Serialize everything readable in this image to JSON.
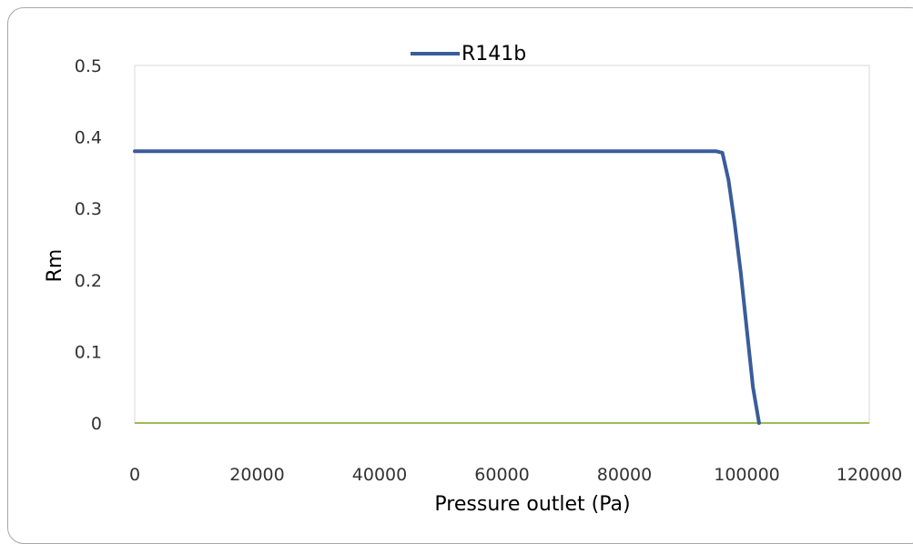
{
  "chart_data": {
    "type": "line",
    "xlabel": "Pressure outlet (Pa)",
    "ylabel": "Rm",
    "xlim": [
      0,
      120000
    ],
    "ylim": [
      0,
      0.5
    ],
    "x_ticks": [
      "0",
      "20000",
      "40000",
      "60000",
      "80000",
      "100000",
      "120000"
    ],
    "y_ticks": [
      "0",
      "0.1",
      "0.2",
      "0.3",
      "0.4",
      "0.5"
    ],
    "legend_position": "top-center",
    "grid": false,
    "series": [
      {
        "name": "R141b",
        "color": "#3a5c9b",
        "x": [
          0,
          20000,
          40000,
          60000,
          80000,
          95000,
          96000,
          97000,
          98000,
          99000,
          100000,
          101000,
          102000
        ],
        "y": [
          0.38,
          0.38,
          0.38,
          0.38,
          0.38,
          0.38,
          0.378,
          0.34,
          0.28,
          0.21,
          0.13,
          0.05,
          0
        ]
      }
    ],
    "baseline_color": "#9bbb59"
  }
}
